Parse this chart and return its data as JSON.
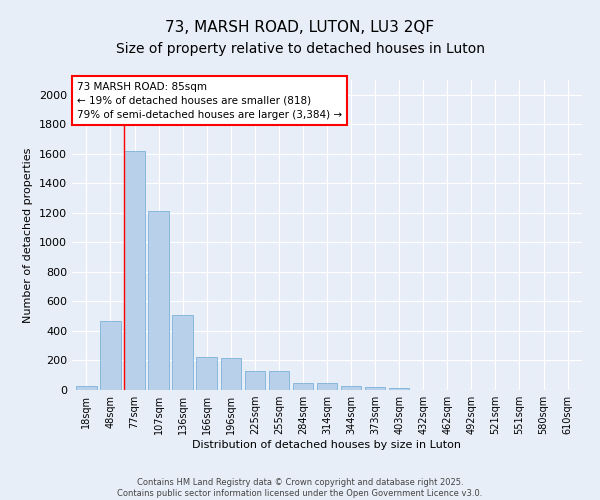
{
  "title_line1": "73, MARSH ROAD, LUTON, LU3 2QF",
  "title_line2": "Size of property relative to detached houses in Luton",
  "xlabel": "Distribution of detached houses by size in Luton",
  "ylabel": "Number of detached properties",
  "bar_color": "#b8d0ea",
  "bar_edge_color": "#6aaad4",
  "background_color": "#e8eef8",
  "grid_color": "#ffffff",
  "categories": [
    "18sqm",
    "48sqm",
    "77sqm",
    "107sqm",
    "136sqm",
    "166sqm",
    "196sqm",
    "225sqm",
    "255sqm",
    "284sqm",
    "314sqm",
    "344sqm",
    "373sqm",
    "403sqm",
    "432sqm",
    "462sqm",
    "492sqm",
    "521sqm",
    "551sqm",
    "580sqm",
    "610sqm"
  ],
  "values": [
    30,
    470,
    1620,
    1210,
    510,
    225,
    220,
    130,
    130,
    50,
    50,
    25,
    20,
    15,
    0,
    0,
    0,
    0,
    0,
    0,
    0
  ],
  "ylim": [
    0,
    2100
  ],
  "yticks": [
    0,
    200,
    400,
    600,
    800,
    1000,
    1200,
    1400,
    1600,
    1800,
    2000
  ],
  "property_line_idx": 2,
  "annotation_text_line1": "73 MARSH ROAD: 85sqm",
  "annotation_text_line2": "← 19% of detached houses are smaller (818)",
  "annotation_text_line3": "79% of semi-detached houses are larger (3,384) →",
  "footer_text": "Contains HM Land Registry data © Crown copyright and database right 2025.\nContains public sector information licensed under the Open Government Licence v3.0.",
  "title_fontsize": 11,
  "subtitle_fontsize": 10,
  "tick_fontsize": 7,
  "ylabel_fontsize": 8,
  "xlabel_fontsize": 8,
  "annotation_fontsize": 7.5,
  "footer_fontsize": 6
}
